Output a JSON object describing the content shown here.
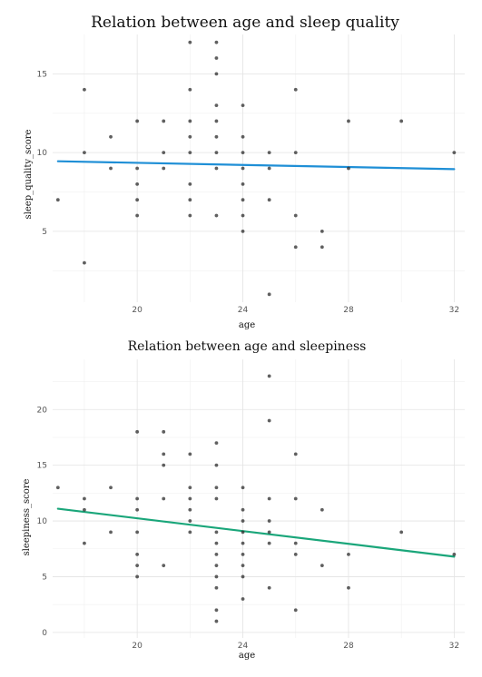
{
  "chart_data": [
    {
      "type": "scatter",
      "title": "Relation between age and sleep quality",
      "xlabel": "age",
      "ylabel": "sleep_quality_score",
      "xlim": [
        16.8,
        32.4
      ],
      "ylim": [
        0.5,
        17.5
      ],
      "xticks": [
        20,
        24,
        28,
        32
      ],
      "yticks": [
        5,
        10,
        15
      ],
      "grid": true,
      "trend_color": "#1f8fd6",
      "trend": {
        "x": [
          17,
          32
        ],
        "y": [
          9.45,
          8.95
        ]
      },
      "points": [
        {
          "x": 17,
          "y": 7
        },
        {
          "x": 18,
          "y": 14
        },
        {
          "x": 18,
          "y": 10
        },
        {
          "x": 18,
          "y": 3
        },
        {
          "x": 19,
          "y": 11
        },
        {
          "x": 19,
          "y": 9
        },
        {
          "x": 20,
          "y": 12
        },
        {
          "x": 20,
          "y": 9
        },
        {
          "x": 20,
          "y": 8
        },
        {
          "x": 20,
          "y": 7
        },
        {
          "x": 20,
          "y": 6
        },
        {
          "x": 21,
          "y": 12
        },
        {
          "x": 21,
          "y": 10
        },
        {
          "x": 21,
          "y": 9
        },
        {
          "x": 22,
          "y": 17
        },
        {
          "x": 22,
          "y": 14
        },
        {
          "x": 22,
          "y": 12
        },
        {
          "x": 22,
          "y": 11
        },
        {
          "x": 22,
          "y": 10
        },
        {
          "x": 22,
          "y": 8
        },
        {
          "x": 22,
          "y": 7
        },
        {
          "x": 22,
          "y": 6
        },
        {
          "x": 23,
          "y": 17
        },
        {
          "x": 23,
          "y": 16
        },
        {
          "x": 23,
          "y": 15
        },
        {
          "x": 23,
          "y": 13
        },
        {
          "x": 23,
          "y": 12
        },
        {
          "x": 23,
          "y": 11
        },
        {
          "x": 23,
          "y": 10
        },
        {
          "x": 23,
          "y": 9
        },
        {
          "x": 23,
          "y": 6
        },
        {
          "x": 24,
          "y": 13
        },
        {
          "x": 24,
          "y": 11
        },
        {
          "x": 24,
          "y": 10
        },
        {
          "x": 24,
          "y": 9
        },
        {
          "x": 24,
          "y": 8
        },
        {
          "x": 24,
          "y": 7
        },
        {
          "x": 24,
          "y": 6
        },
        {
          "x": 24,
          "y": 5
        },
        {
          "x": 25,
          "y": 10
        },
        {
          "x": 25,
          "y": 9
        },
        {
          "x": 25,
          "y": 7
        },
        {
          "x": 25,
          "y": 1
        },
        {
          "x": 26,
          "y": 14
        },
        {
          "x": 26,
          "y": 10
        },
        {
          "x": 26,
          "y": 6
        },
        {
          "x": 26,
          "y": 4
        },
        {
          "x": 27,
          "y": 5
        },
        {
          "x": 27,
          "y": 4
        },
        {
          "x": 28,
          "y": 12
        },
        {
          "x": 28,
          "y": 9
        },
        {
          "x": 30,
          "y": 12
        },
        {
          "x": 32,
          "y": 10
        }
      ]
    },
    {
      "type": "scatter",
      "title": "Relation between age and sleepiness",
      "xlabel": "age",
      "ylabel": "sleepiness_score",
      "xlim": [
        16.8,
        32.4
      ],
      "ylim": [
        -0.5,
        24.5
      ],
      "xticks": [
        20,
        24,
        28,
        32
      ],
      "yticks": [
        0,
        5,
        10,
        15,
        20
      ],
      "grid": true,
      "trend_color": "#1aa67a",
      "trend": {
        "x": [
          17,
          32
        ],
        "y": [
          11.1,
          6.8
        ]
      },
      "points": [
        {
          "x": 17,
          "y": 13
        },
        {
          "x": 18,
          "y": 12
        },
        {
          "x": 18,
          "y": 11
        },
        {
          "x": 18,
          "y": 8
        },
        {
          "x": 19,
          "y": 13
        },
        {
          "x": 19,
          "y": 9
        },
        {
          "x": 20,
          "y": 18
        },
        {
          "x": 20,
          "y": 12
        },
        {
          "x": 20,
          "y": 11
        },
        {
          "x": 20,
          "y": 9
        },
        {
          "x": 20,
          "y": 7
        },
        {
          "x": 20,
          "y": 6
        },
        {
          "x": 20,
          "y": 5
        },
        {
          "x": 21,
          "y": 18
        },
        {
          "x": 21,
          "y": 16
        },
        {
          "x": 21,
          "y": 15
        },
        {
          "x": 21,
          "y": 12
        },
        {
          "x": 21,
          "y": 6
        },
        {
          "x": 22,
          "y": 16
        },
        {
          "x": 22,
          "y": 13
        },
        {
          "x": 22,
          "y": 12
        },
        {
          "x": 22,
          "y": 11
        },
        {
          "x": 22,
          "y": 10
        },
        {
          "x": 22,
          "y": 9
        },
        {
          "x": 23,
          "y": 17
        },
        {
          "x": 23,
          "y": 15
        },
        {
          "x": 23,
          "y": 13
        },
        {
          "x": 23,
          "y": 12
        },
        {
          "x": 23,
          "y": 9
        },
        {
          "x": 23,
          "y": 8
        },
        {
          "x": 23,
          "y": 7
        },
        {
          "x": 23,
          "y": 6
        },
        {
          "x": 23,
          "y": 5
        },
        {
          "x": 23,
          "y": 4
        },
        {
          "x": 23,
          "y": 2
        },
        {
          "x": 23,
          "y": 1
        },
        {
          "x": 24,
          "y": 13
        },
        {
          "x": 24,
          "y": 11
        },
        {
          "x": 24,
          "y": 10
        },
        {
          "x": 24,
          "y": 9
        },
        {
          "x": 24,
          "y": 8
        },
        {
          "x": 24,
          "y": 7
        },
        {
          "x": 24,
          "y": 6
        },
        {
          "x": 24,
          "y": 5
        },
        {
          "x": 24,
          "y": 3
        },
        {
          "x": 25,
          "y": 23
        },
        {
          "x": 25,
          "y": 19
        },
        {
          "x": 25,
          "y": 12
        },
        {
          "x": 25,
          "y": 10
        },
        {
          "x": 25,
          "y": 9
        },
        {
          "x": 25,
          "y": 8
        },
        {
          "x": 25,
          "y": 4
        },
        {
          "x": 26,
          "y": 16
        },
        {
          "x": 26,
          "y": 12
        },
        {
          "x": 26,
          "y": 8
        },
        {
          "x": 26,
          "y": 7
        },
        {
          "x": 26,
          "y": 2
        },
        {
          "x": 27,
          "y": 11
        },
        {
          "x": 27,
          "y": 6
        },
        {
          "x": 28,
          "y": 7
        },
        {
          "x": 28,
          "y": 4
        },
        {
          "x": 30,
          "y": 9
        },
        {
          "x": 32,
          "y": 7
        }
      ]
    }
  ]
}
